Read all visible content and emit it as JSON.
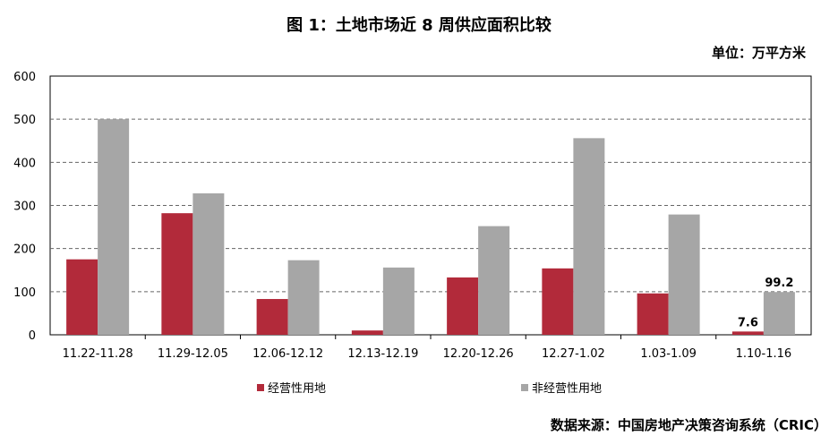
{
  "chart_data": {
    "type": "bar",
    "title": "图 1：土地市场近 8 周供应面积比较",
    "unit_label": "单位：万平方米",
    "source": "数据来源：中国房地产决策咨询系统（CRIC）",
    "categories": [
      "11.22-11.28",
      "11.29-12.05",
      "12.06-12.12",
      "12.13-12.19",
      "12.20-12.26",
      "12.27-1.02",
      "1.03-1.09",
      "1.10-1.16"
    ],
    "series": [
      {
        "name": "经营性用地",
        "color": "#b22a3a",
        "values": [
          175,
          282,
          83,
          10,
          133,
          154,
          96,
          7.6
        ]
      },
      {
        "name": "非经营性用地",
        "color": "#a6a6a6",
        "values": [
          500,
          328,
          173,
          156,
          252,
          456,
          279,
          99.2
        ]
      }
    ],
    "data_labels": [
      {
        "series": 0,
        "index": 7,
        "text": "7.6"
      },
      {
        "series": 1,
        "index": 7,
        "text": "99.2"
      }
    ],
    "yticks": [
      0,
      100,
      200,
      300,
      400,
      500,
      600
    ],
    "ylim": [
      0,
      600
    ],
    "grid": true,
    "legend_position": "bottom"
  }
}
